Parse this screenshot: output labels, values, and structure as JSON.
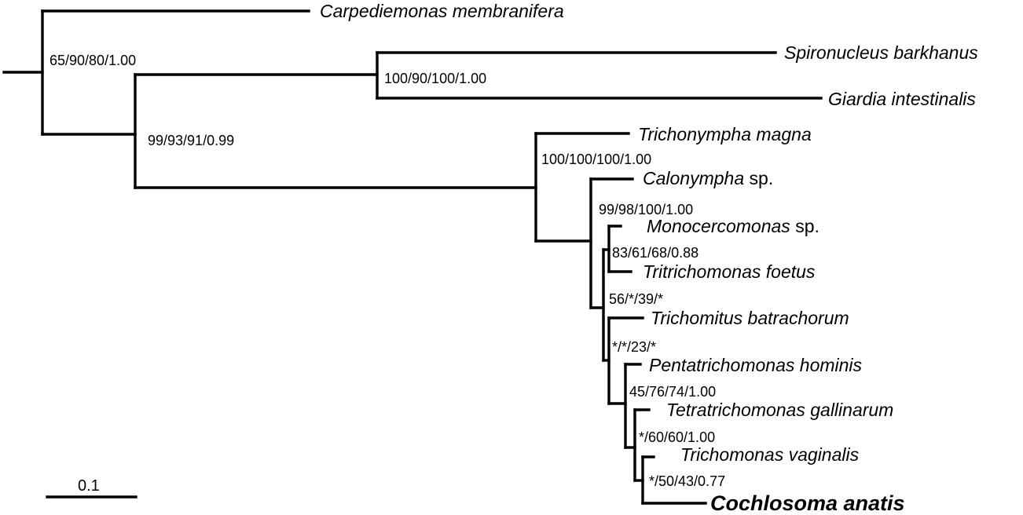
{
  "taxa": {
    "carpediemonas": "Carpediemonas membranifera",
    "spironucleus": "Spironucleus barkhanus",
    "giardia": "Giardia intestinalis",
    "trichonympha": "Trichonympha magna",
    "calonympha": "Calonympha",
    "calonympha_suffix": " sp.",
    "monocercomonas": "Monocercomonas",
    "monocercomonas_suffix": " sp.",
    "tritrichomonas": "Tritrichomonas foetus",
    "trichomitus": "Trichomitus batrachorum",
    "pentatrichomonas": "Pentatrichomonas hominis",
    "tetratrichomonas": "Tetratrichomonas gallinarum",
    "trichomonas": "Trichomonas vaginalis",
    "cochlosoma": "Cochlosoma anatis"
  },
  "support": {
    "n1": "65/90/80/1.00",
    "n2": "99/93/91/0.99",
    "n3": "100/90/100/1.00",
    "n4": "100/100/100/1.00",
    "n5": "99/98/100/1.00",
    "n6": "83/61/68/0.88",
    "n7": "56/*/39/*",
    "n8": "*/*/23/*",
    "n9": "45/76/74/1.00",
    "n10": "*/60/60/1.00",
    "n11": "*/50/43/0.77"
  },
  "scale_bar": {
    "label": "0.1"
  }
}
